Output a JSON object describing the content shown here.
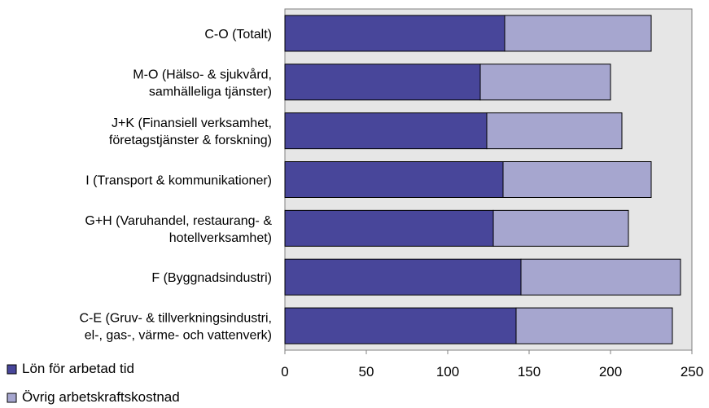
{
  "chart_data": {
    "type": "bar",
    "orientation": "horizontal",
    "stacked": true,
    "categories": [
      [
        "C-O (Totalt)"
      ],
      [
        "M-O (Hälso- & sjukvård,",
        "samhälleliga tjänster)"
      ],
      [
        "J+K (Finansiell verksamhet,",
        "företagstjänster & forskning)"
      ],
      [
        "I (Transport & kommunikationer)"
      ],
      [
        "G+H (Varuhandel, restaurang- &",
        "hotellverksamhet)"
      ],
      [
        "F (Byggnadsindustri)"
      ],
      [
        "C-E (Gruv- & tillverkningsindustri,",
        "el-, gas-, värme- och vattenverk)"
      ]
    ],
    "series": [
      {
        "name": "Lön för arbetad tid",
        "color": "#48469a",
        "values": [
          135,
          120,
          124,
          134,
          128,
          145,
          142
        ]
      },
      {
        "name": "Övrig arbetskraftskostnad",
        "color": "#a6a6cf",
        "values": [
          90,
          80,
          83,
          91,
          83,
          98,
          96
        ]
      }
    ],
    "xlim": [
      0,
      250
    ],
    "xticks": [
      0,
      50,
      100,
      150,
      200,
      250
    ],
    "plot_background": "#e6e6e6",
    "grid": false,
    "legend_position": "bottom-left"
  }
}
